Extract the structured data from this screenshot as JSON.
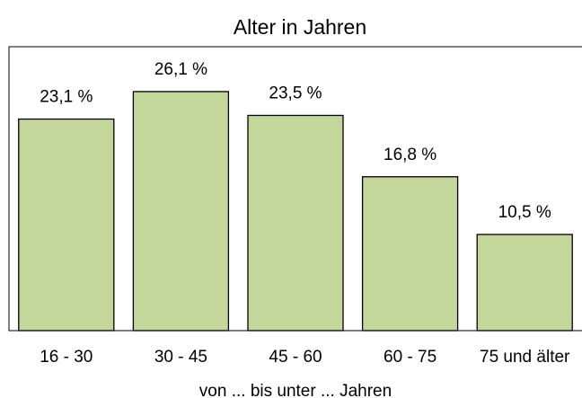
{
  "chart_data": {
    "type": "bar",
    "title": "Alter in Jahren",
    "categories": [
      "16 - 30",
      "30 - 45",
      "45 - 60",
      "60 - 75",
      "75 und älter"
    ],
    "values": [
      23.1,
      26.1,
      23.5,
      16.8,
      10.5
    ],
    "value_labels": [
      "23,1 %",
      "26,1 %",
      "23,5 %",
      "16,8 %",
      "10,5 %"
    ],
    "x_label": "von ... bis unter ... Jahren",
    "color": "#c4d79b",
    "ylim": [
      0,
      31
    ]
  }
}
